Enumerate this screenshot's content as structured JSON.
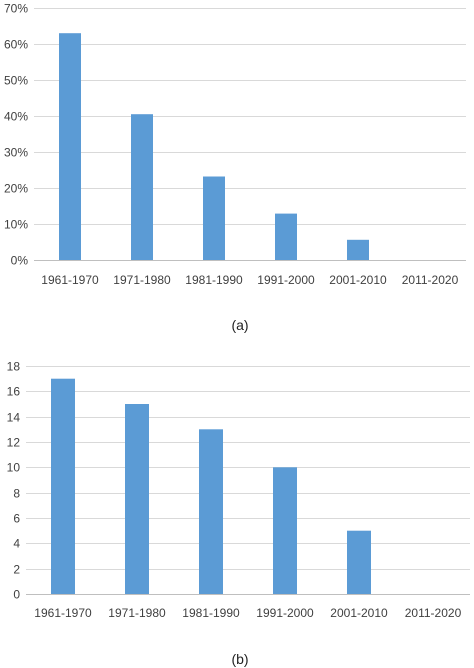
{
  "colors": {
    "bar": "#5b9bd5",
    "gridline": "#d9d9d9",
    "axis": "#bfbfbf",
    "text": "#404040"
  },
  "captions": [
    "(a)",
    "(b)"
  ],
  "chart_data": [
    {
      "type": "bar",
      "caption": "(a)",
      "categories": [
        "1961-1970",
        "1971-1980",
        "1981-1990",
        "1991-2000",
        "2001-2010",
        "2011-2020"
      ],
      "values": [
        0.63,
        0.405,
        0.232,
        0.129,
        0.056,
        0
      ],
      "ylim": [
        0,
        0.7
      ],
      "yticks": [
        "0%",
        "10%",
        "20%",
        "30%",
        "40%",
        "50%",
        "60%",
        "70%"
      ],
      "grid": true,
      "legend": "none",
      "title": "",
      "xlabel": "",
      "ylabel": ""
    },
    {
      "type": "bar",
      "caption": "(b)",
      "categories": [
        "1961-1970",
        "1971-1980",
        "1981-1990",
        "1991-2000",
        "2001-2010",
        "2011-2020"
      ],
      "values": [
        17,
        15,
        13,
        10,
        5,
        0
      ],
      "ylim": [
        0,
        18
      ],
      "yticks": [
        "0",
        "2",
        "4",
        "6",
        "8",
        "10",
        "12",
        "14",
        "16",
        "18"
      ],
      "grid": true,
      "legend": "none",
      "title": "",
      "xlabel": "",
      "ylabel": ""
    }
  ]
}
